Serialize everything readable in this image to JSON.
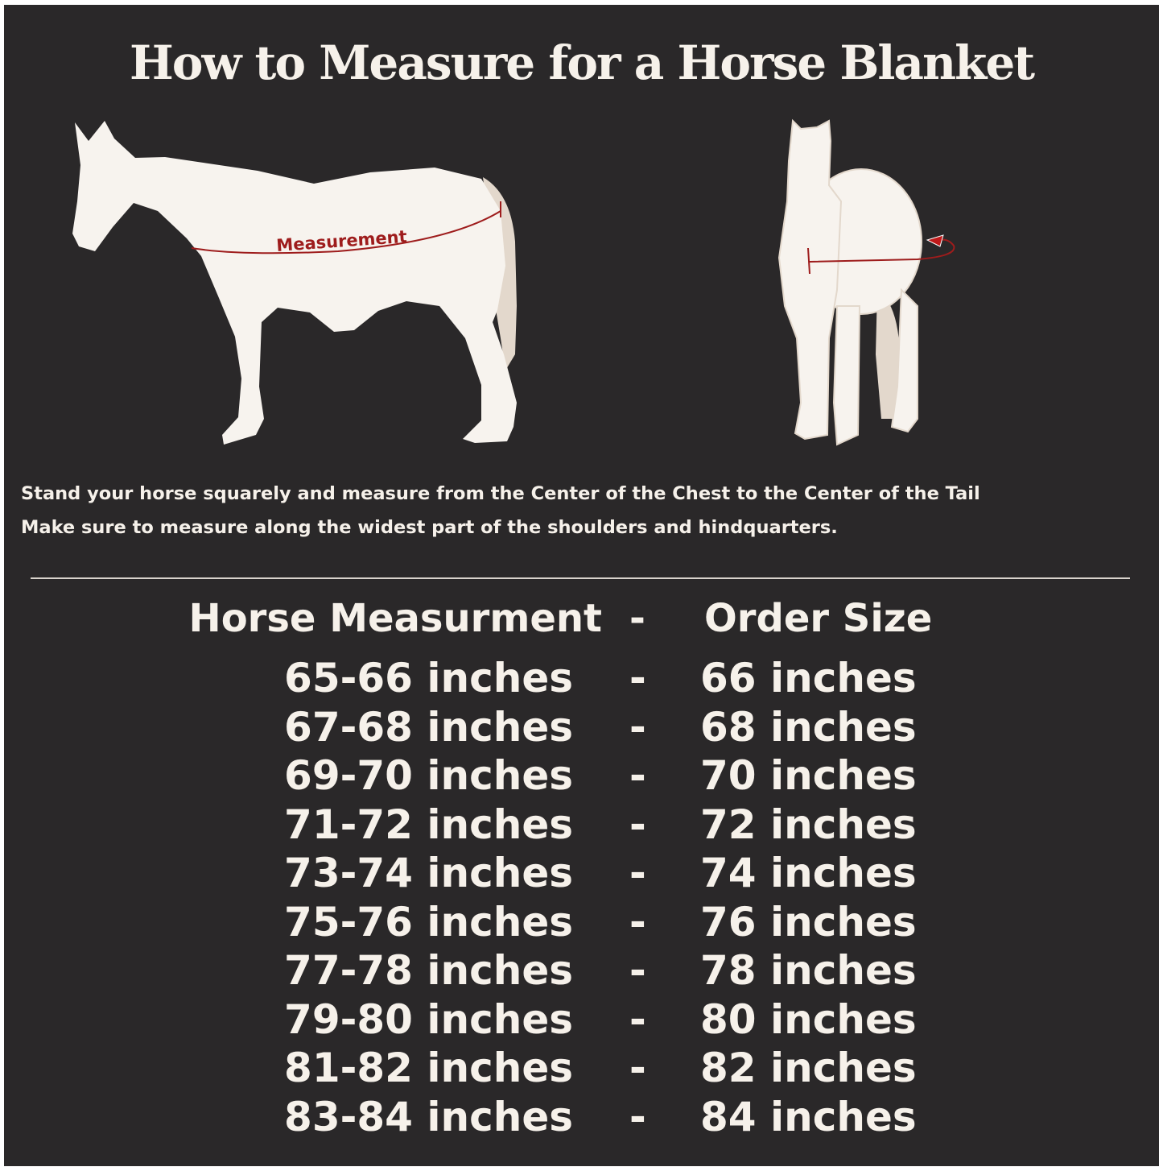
{
  "title": "How to Measure for a Horse Blanket",
  "diagram": {
    "side_label": "Measurement",
    "accent_color": "#9e1c1c"
  },
  "instructions": [
    "Stand your horse squarely and measure from the Center of the Chest to the Center of the Tail",
    "Make sure to measure along the widest part of the shoulders and hindquarters."
  ],
  "table": {
    "header": {
      "measurement": "Horse Measurment",
      "separator": "-",
      "size": "Order Size"
    },
    "rows": [
      {
        "measurement": "65-66 inches",
        "separator": "-",
        "size": "66 inches"
      },
      {
        "measurement": "67-68 inches",
        "separator": "-",
        "size": "68 inches"
      },
      {
        "measurement": "69-70 inches",
        "separator": "-",
        "size": "70 inches"
      },
      {
        "measurement": "71-72 inches",
        "separator": "-",
        "size": "72 inches"
      },
      {
        "measurement": "73-74 inches",
        "separator": "-",
        "size": "74 inches"
      },
      {
        "measurement": "75-76 inches",
        "separator": "-",
        "size": "76 inches"
      },
      {
        "measurement": "77-78 inches",
        "separator": "-",
        "size": "78 inches"
      },
      {
        "measurement": "79-80 inches",
        "separator": "-",
        "size": "80 inches"
      },
      {
        "measurement": "81-82 inches",
        "separator": "-",
        "size": "82 inches"
      },
      {
        "measurement": "83-84 inches",
        "separator": "-",
        "size": "84 inches"
      }
    ]
  }
}
